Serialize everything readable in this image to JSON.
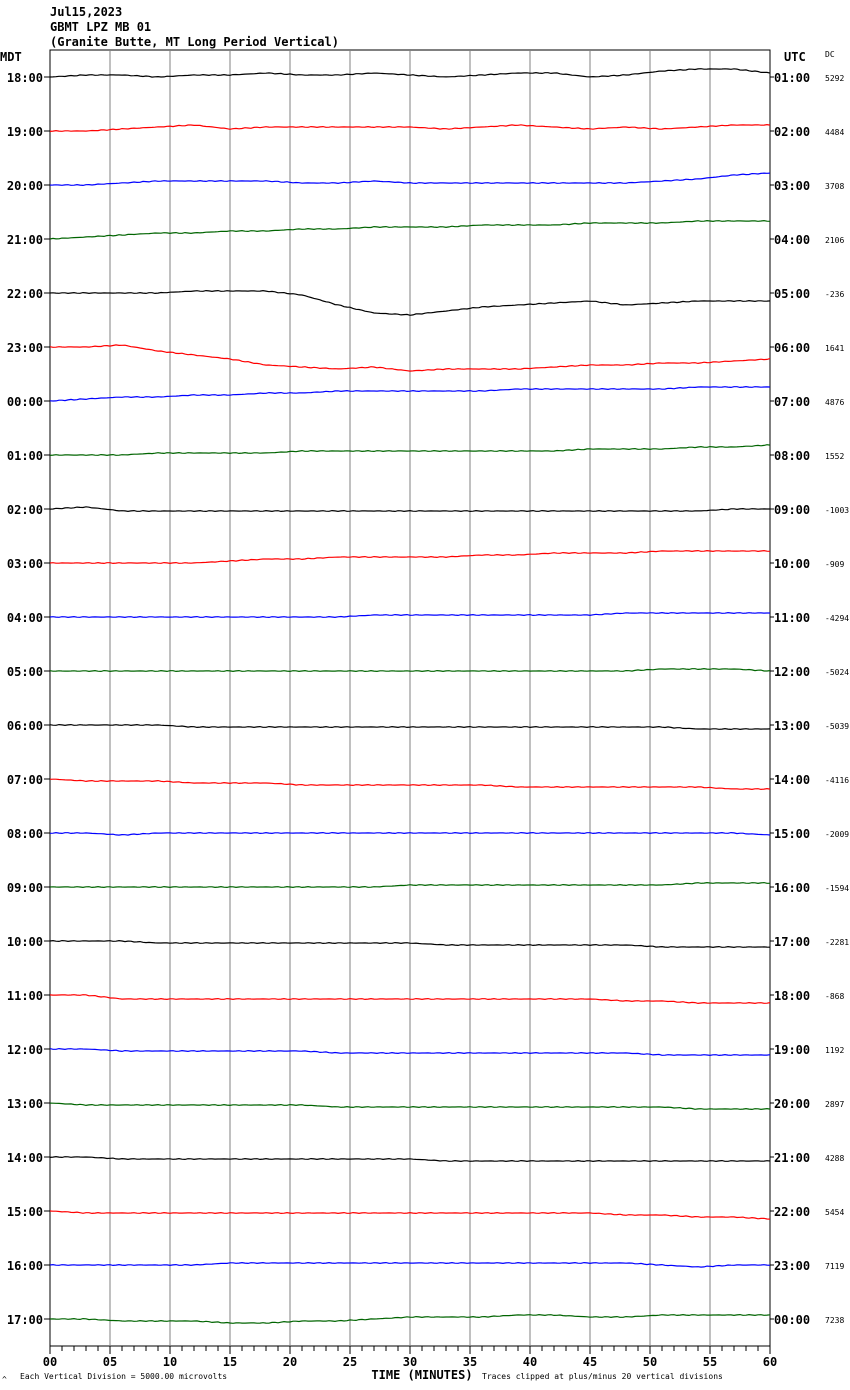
{
  "header": {
    "date": "Jul15,2023",
    "station": "GBMT LPZ MB 01",
    "location": "(Granite Butte, MT Long Period Vertical)"
  },
  "left_axis_label": "MDT",
  "right_axis_label": "UTC",
  "dc_label": "DC",
  "footer": {
    "scale_note": "Each Vertical Division = 5000.00 microvolts",
    "clip_note": "Traces clipped at plus/minus 20 vertical divisions",
    "corner_mark": "^"
  },
  "colors": {
    "black": "#000000",
    "red": "#ff0000",
    "blue": "#0000ff",
    "green": "#006400",
    "grid": "#808080"
  },
  "chart_data": {
    "type": "line",
    "title": "GBMT LPZ MB 01",
    "xlabel": "TIME (MINUTES)",
    "xlim": [
      0,
      60
    ],
    "x_ticks": [
      "00",
      "05",
      "10",
      "15",
      "20",
      "25",
      "30",
      "35",
      "40",
      "45",
      "50",
      "55",
      "60"
    ],
    "grid_x": true,
    "rows": [
      {
        "left": "18:00",
        "right": "01:00",
        "dc": "5292",
        "color": "black",
        "y": [
          0,
          -0.1,
          -0.1,
          0,
          -0.1,
          -0.1,
          -0.2,
          -0.1,
          -0.1,
          -0.2,
          -0.1,
          0,
          -0.1,
          -0.2,
          -0.2,
          0,
          -0.1,
          -0.3,
          -0.4,
          -0.4,
          -0.2
        ]
      },
      {
        "left": "19:00",
        "right": "02:00",
        "dc": "4484",
        "color": "red",
        "y": [
          0,
          0,
          -0.1,
          -0.2,
          -0.3,
          -0.1,
          -0.2,
          -0.2,
          -0.2,
          -0.2,
          -0.2,
          -0.1,
          -0.2,
          -0.3,
          -0.2,
          -0.1,
          -0.2,
          -0.1,
          -0.2,
          -0.3,
          -0.3
        ]
      },
      {
        "left": "20:00",
        "right": "03:00",
        "dc": "3708",
        "color": "blue",
        "y": [
          0,
          0,
          -0.1,
          -0.2,
          -0.2,
          -0.2,
          -0.2,
          -0.1,
          -0.1,
          -0.2,
          -0.1,
          -0.1,
          -0.1,
          -0.1,
          -0.1,
          -0.1,
          -0.1,
          -0.2,
          -0.3,
          -0.5,
          -0.6
        ]
      },
      {
        "left": "21:00",
        "right": "04:00",
        "dc": "2106",
        "color": "green",
        "y": [
          0,
          -0.1,
          -0.2,
          -0.3,
          -0.3,
          -0.4,
          -0.4,
          -0.5,
          -0.5,
          -0.6,
          -0.6,
          -0.6,
          -0.7,
          -0.7,
          -0.7,
          -0.8,
          -0.8,
          -0.8,
          -0.9,
          -0.9,
          -0.9
        ]
      },
      {
        "left": "22:00",
        "right": "05:00",
        "dc": "-236",
        "color": "black",
        "y": [
          0,
          0,
          0,
          0,
          -0.1,
          -0.1,
          -0.1,
          0.1,
          0.6,
          1.0,
          1.1,
          0.9,
          0.7,
          0.6,
          0.5,
          0.4,
          0.6,
          0.5,
          0.4,
          0.4,
          0.4
        ]
      },
      {
        "left": "23:00",
        "right": "06:00",
        "dc": "1641",
        "color": "red",
        "y": [
          0,
          0,
          -0.1,
          0.2,
          0.4,
          0.6,
          0.9,
          1.0,
          1.1,
          1.0,
          1.2,
          1.1,
          1.1,
          1.1,
          1.0,
          0.9,
          0.9,
          0.8,
          0.8,
          0.7,
          0.6
        ]
      },
      {
        "left": "00:00",
        "right": "07:00",
        "dc": "4876",
        "color": "blue",
        "y": [
          0,
          -0.1,
          -0.2,
          -0.2,
          -0.3,
          -0.3,
          -0.4,
          -0.4,
          -0.5,
          -0.5,
          -0.5,
          -0.5,
          -0.5,
          -0.6,
          -0.6,
          -0.6,
          -0.6,
          -0.6,
          -0.7,
          -0.7,
          -0.7
        ]
      },
      {
        "left": "01:00",
        "right": "08:00",
        "dc": "1552",
        "color": "green",
        "y": [
          0,
          0,
          0,
          -0.1,
          -0.1,
          -0.1,
          -0.1,
          -0.2,
          -0.2,
          -0.2,
          -0.2,
          -0.2,
          -0.2,
          -0.2,
          -0.2,
          -0.3,
          -0.3,
          -0.3,
          -0.4,
          -0.4,
          -0.5
        ]
      },
      {
        "left": "02:00",
        "right": "09:00",
        "dc": "-1003",
        "color": "black",
        "y": [
          0,
          -0.1,
          0.1,
          0.1,
          0.1,
          0.1,
          0.1,
          0.1,
          0.1,
          0.1,
          0.1,
          0.1,
          0.1,
          0.1,
          0.1,
          0.1,
          0.1,
          0.1,
          0.1,
          0,
          0
        ]
      },
      {
        "left": "03:00",
        "right": "10:00",
        "dc": "-909",
        "color": "red",
        "y": [
          0,
          0,
          0,
          0,
          0,
          -0.1,
          -0.2,
          -0.2,
          -0.3,
          -0.3,
          -0.3,
          -0.3,
          -0.4,
          -0.4,
          -0.5,
          -0.5,
          -0.5,
          -0.6,
          -0.6,
          -0.6,
          -0.6
        ]
      },
      {
        "left": "04:00",
        "right": "11:00",
        "dc": "-4294",
        "color": "blue",
        "y": [
          0,
          0,
          0,
          0,
          0,
          0,
          0,
          0,
          0,
          -0.1,
          -0.1,
          -0.1,
          -0.1,
          -0.1,
          -0.1,
          -0.1,
          -0.2,
          -0.2,
          -0.2,
          -0.2,
          -0.2
        ]
      },
      {
        "left": "05:00",
        "right": "12:00",
        "dc": "-5024",
        "color": "green",
        "y": [
          0,
          0,
          0,
          0,
          0,
          0,
          0,
          0,
          0,
          0,
          0,
          0,
          0,
          0,
          0,
          0,
          0,
          -0.1,
          -0.1,
          -0.1,
          0
        ]
      },
      {
        "left": "06:00",
        "right": "13:00",
        "dc": "-5039",
        "color": "black",
        "y": [
          0,
          0,
          0,
          0,
          0.1,
          0.1,
          0.1,
          0.1,
          0.1,
          0.1,
          0.1,
          0.1,
          0.1,
          0.1,
          0.1,
          0.1,
          0.1,
          0.1,
          0.2,
          0.2,
          0.2
        ]
      },
      {
        "left": "07:00",
        "right": "14:00",
        "dc": "-4116",
        "color": "red",
        "y": [
          0,
          0.1,
          0.1,
          0.1,
          0.2,
          0.2,
          0.2,
          0.3,
          0.3,
          0.3,
          0.3,
          0.3,
          0.3,
          0.4,
          0.4,
          0.4,
          0.4,
          0.4,
          0.4,
          0.5,
          0.5
        ]
      },
      {
        "left": "08:00",
        "right": "15:00",
        "dc": "-2009",
        "color": "blue",
        "y": [
          0,
          0,
          0.1,
          0,
          0,
          0,
          0,
          0,
          0,
          0,
          0,
          0,
          0,
          0,
          0,
          0,
          0,
          0,
          0,
          0,
          0.1
        ]
      },
      {
        "left": "09:00",
        "right": "16:00",
        "dc": "-1594",
        "color": "green",
        "y": [
          0,
          0,
          0,
          0,
          0,
          0,
          0,
          0,
          0,
          0,
          -0.1,
          -0.1,
          -0.1,
          -0.1,
          -0.1,
          -0.1,
          -0.1,
          -0.1,
          -0.2,
          -0.2,
          -0.2
        ]
      },
      {
        "left": "10:00",
        "right": "17:00",
        "dc": "-2281",
        "color": "black",
        "y": [
          0,
          0,
          0,
          0.1,
          0.1,
          0.1,
          0.1,
          0.1,
          0.1,
          0.1,
          0.1,
          0.2,
          0.2,
          0.2,
          0.2,
          0.2,
          0.2,
          0.3,
          0.3,
          0.3,
          0.3
        ]
      },
      {
        "left": "11:00",
        "right": "18:00",
        "dc": "-868",
        "color": "red",
        "y": [
          0,
          0,
          0.2,
          0.2,
          0.2,
          0.2,
          0.2,
          0.2,
          0.2,
          0.2,
          0.2,
          0.2,
          0.2,
          0.2,
          0.2,
          0.2,
          0.3,
          0.3,
          0.4,
          0.4,
          0.4
        ]
      },
      {
        "left": "12:00",
        "right": "19:00",
        "dc": "1192",
        "color": "blue",
        "y": [
          0,
          0,
          0.1,
          0.1,
          0.1,
          0.1,
          0.1,
          0.1,
          0.2,
          0.2,
          0.2,
          0.2,
          0.2,
          0.2,
          0.2,
          0.2,
          0.2,
          0.3,
          0.3,
          0.3,
          0.3
        ]
      },
      {
        "left": "13:00",
        "right": "20:00",
        "dc": "2897",
        "color": "green",
        "y": [
          0,
          0.1,
          0.1,
          0.1,
          0.1,
          0.1,
          0.1,
          0.1,
          0.2,
          0.2,
          0.2,
          0.2,
          0.2,
          0.2,
          0.2,
          0.2,
          0.2,
          0.2,
          0.3,
          0.3,
          0.3
        ]
      },
      {
        "left": "14:00",
        "right": "21:00",
        "dc": "4288",
        "color": "black",
        "y": [
          0,
          0,
          0.1,
          0.1,
          0.1,
          0.1,
          0.1,
          0.1,
          0.1,
          0.1,
          0.1,
          0.2,
          0.2,
          0.2,
          0.2,
          0.2,
          0.2,
          0.2,
          0.2,
          0.2,
          0.2
        ]
      },
      {
        "left": "15:00",
        "right": "22:00",
        "dc": "5454",
        "color": "red",
        "y": [
          0,
          0.1,
          0.1,
          0.1,
          0.1,
          0.1,
          0.1,
          0.1,
          0.1,
          0.1,
          0.1,
          0.1,
          0.1,
          0.1,
          0.1,
          0.1,
          0.2,
          0.2,
          0.3,
          0.3,
          0.4
        ]
      },
      {
        "left": "16:00",
        "right": "23:00",
        "dc": "7119",
        "color": "blue",
        "y": [
          0,
          0,
          0,
          0,
          0,
          -0.1,
          -0.1,
          -0.1,
          -0.1,
          -0.1,
          -0.1,
          -0.1,
          -0.1,
          -0.1,
          -0.1,
          -0.1,
          -0.1,
          0,
          0.1,
          0,
          0
        ]
      },
      {
        "left": "17:00",
        "right": "00:00",
        "dc": "7238",
        "color": "green",
        "y": [
          0,
          0,
          0.1,
          0.1,
          0.1,
          0.2,
          0.2,
          0.1,
          0.1,
          0,
          -0.1,
          -0.1,
          -0.1,
          -0.2,
          -0.2,
          -0.1,
          -0.1,
          -0.2,
          -0.2,
          -0.2,
          -0.2
        ]
      }
    ]
  }
}
